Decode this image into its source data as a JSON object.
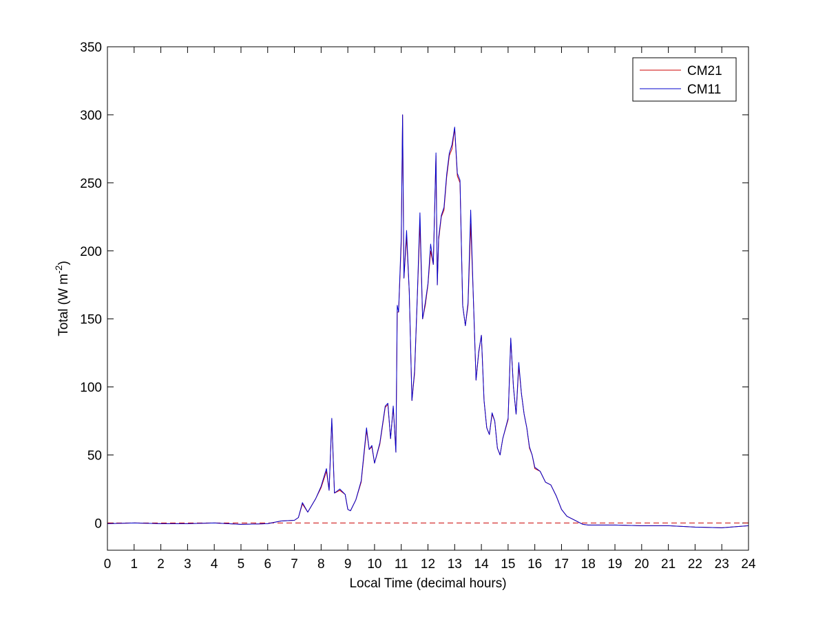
{
  "chart_data": {
    "type": "line",
    "title": "",
    "xlabel": "Local Time (decimal hours)",
    "ylabel": "Total (W m-2)",
    "ylabel_parts": {
      "main": "Total (W m",
      "superscript": "-2",
      "close": ")"
    },
    "xlim": [
      0,
      24
    ],
    "ylim": [
      -20,
      350
    ],
    "xticks": [
      0,
      1,
      2,
      3,
      4,
      5,
      6,
      7,
      8,
      9,
      10,
      11,
      12,
      13,
      14,
      15,
      16,
      17,
      18,
      19,
      20,
      21,
      22,
      23,
      24
    ],
    "yticks": [
      0,
      50,
      100,
      150,
      200,
      250,
      300,
      350
    ],
    "grid": false,
    "legend_position": "top-right",
    "zero_line": {
      "y": 0,
      "style": "dashed",
      "color": "#CC0000"
    },
    "series": [
      {
        "name": "CM21",
        "color": "#CC0000",
        "x": [
          0,
          1,
          2,
          3,
          4,
          5,
          6,
          6.5,
          7,
          7.15,
          7.3,
          7.5,
          7.8,
          8.0,
          8.2,
          8.3,
          8.4,
          8.5,
          8.7,
          8.9,
          9.0,
          9.1,
          9.3,
          9.5,
          9.7,
          9.8,
          9.9,
          10.0,
          10.2,
          10.4,
          10.5,
          10.6,
          10.7,
          10.8,
          10.85,
          10.9,
          11.0,
          11.05,
          11.1,
          11.2,
          11.3,
          11.4,
          11.5,
          11.6,
          11.7,
          11.8,
          11.9,
          12.0,
          12.1,
          12.2,
          12.3,
          12.35,
          12.4,
          12.5,
          12.6,
          12.7,
          12.8,
          12.9,
          13.0,
          13.1,
          13.2,
          13.3,
          13.4,
          13.5,
          13.6,
          13.7,
          13.8,
          13.9,
          14.0,
          14.1,
          14.2,
          14.3,
          14.4,
          14.5,
          14.6,
          14.7,
          14.8,
          15.0,
          15.1,
          15.2,
          15.3,
          15.4,
          15.5,
          15.6,
          15.7,
          15.8,
          15.9,
          16.0,
          16.2,
          16.4,
          16.6,
          16.8,
          17.0,
          17.2,
          17.5,
          17.8,
          18.0,
          19,
          20,
          21,
          22,
          23,
          24
        ],
        "y": [
          -0.5,
          0,
          -0.5,
          -0.5,
          0,
          -1,
          -0.5,
          1.5,
          2,
          4,
          14,
          8,
          18,
          26,
          38,
          24,
          76,
          22,
          24,
          21,
          10,
          9,
          17,
          30,
          68,
          54,
          56,
          44,
          58,
          85,
          87,
          62,
          85,
          52,
          155,
          155,
          205,
          300,
          180,
          210,
          170,
          90,
          110,
          165,
          220,
          150,
          160,
          175,
          200,
          190,
          270,
          175,
          208,
          225,
          230,
          254,
          270,
          275,
          290,
          255,
          250,
          160,
          145,
          160,
          220,
          165,
          105,
          125,
          138,
          90,
          70,
          65,
          80,
          75,
          55,
          50,
          62,
          76,
          135,
          100,
          80,
          115,
          95,
          80,
          70,
          55,
          50,
          40,
          38,
          30,
          28,
          20,
          10,
          5,
          2,
          -1,
          -1.5,
          -1.5,
          -2,
          -2,
          -3,
          -3.5,
          -2
        ],
        "note_values": "approximate series read from chart"
      },
      {
        "name": "CM11",
        "color": "#0000CC",
        "x": [
          0,
          1,
          2,
          3,
          4,
          5,
          6,
          6.5,
          7,
          7.15,
          7.3,
          7.5,
          7.8,
          8.0,
          8.2,
          8.3,
          8.4,
          8.5,
          8.7,
          8.9,
          9.0,
          9.1,
          9.3,
          9.5,
          9.7,
          9.8,
          9.9,
          10.0,
          10.2,
          10.4,
          10.5,
          10.6,
          10.7,
          10.8,
          10.85,
          10.9,
          11.0,
          11.05,
          11.1,
          11.2,
          11.3,
          11.4,
          11.5,
          11.6,
          11.7,
          11.8,
          11.9,
          12.0,
          12.1,
          12.2,
          12.3,
          12.35,
          12.4,
          12.5,
          12.6,
          12.7,
          12.8,
          12.9,
          13.0,
          13.1,
          13.2,
          13.3,
          13.4,
          13.5,
          13.6,
          13.7,
          13.8,
          13.9,
          14.0,
          14.1,
          14.2,
          14.3,
          14.4,
          14.5,
          14.6,
          14.7,
          14.8,
          15.0,
          15.1,
          15.2,
          15.3,
          15.4,
          15.5,
          15.6,
          15.7,
          15.8,
          15.9,
          16.0,
          16.2,
          16.4,
          16.6,
          16.8,
          17.0,
          17.2,
          17.5,
          17.8,
          18.0,
          19,
          20,
          21,
          22,
          23,
          24
        ],
        "y": [
          -0.5,
          0,
          -0.5,
          -0.5,
          0,
          -1,
          -0.5,
          1.5,
          2,
          4,
          15,
          8,
          18,
          27,
          40,
          24,
          77,
          22,
          25,
          21,
          10,
          9,
          17,
          31,
          70,
          54,
          57,
          44,
          59,
          86,
          88,
          62,
          86,
          52,
          160,
          155,
          210,
          300,
          180,
          215,
          170,
          90,
          112,
          166,
          228,
          150,
          162,
          176,
          205,
          190,
          272,
          175,
          210,
          226,
          232,
          256,
          272,
          278,
          291,
          257,
          252,
          160,
          145,
          162,
          230,
          165,
          105,
          126,
          138,
          90,
          70,
          65,
          81,
          75,
          55,
          50,
          62,
          77,
          136,
          100,
          80,
          118,
          95,
          80,
          70,
          56,
          50,
          41,
          38,
          30,
          28,
          20,
          10,
          5,
          2,
          -1,
          -1.5,
          -1.5,
          -2,
          -2,
          -3,
          -3.5,
          -2
        ]
      }
    ]
  }
}
